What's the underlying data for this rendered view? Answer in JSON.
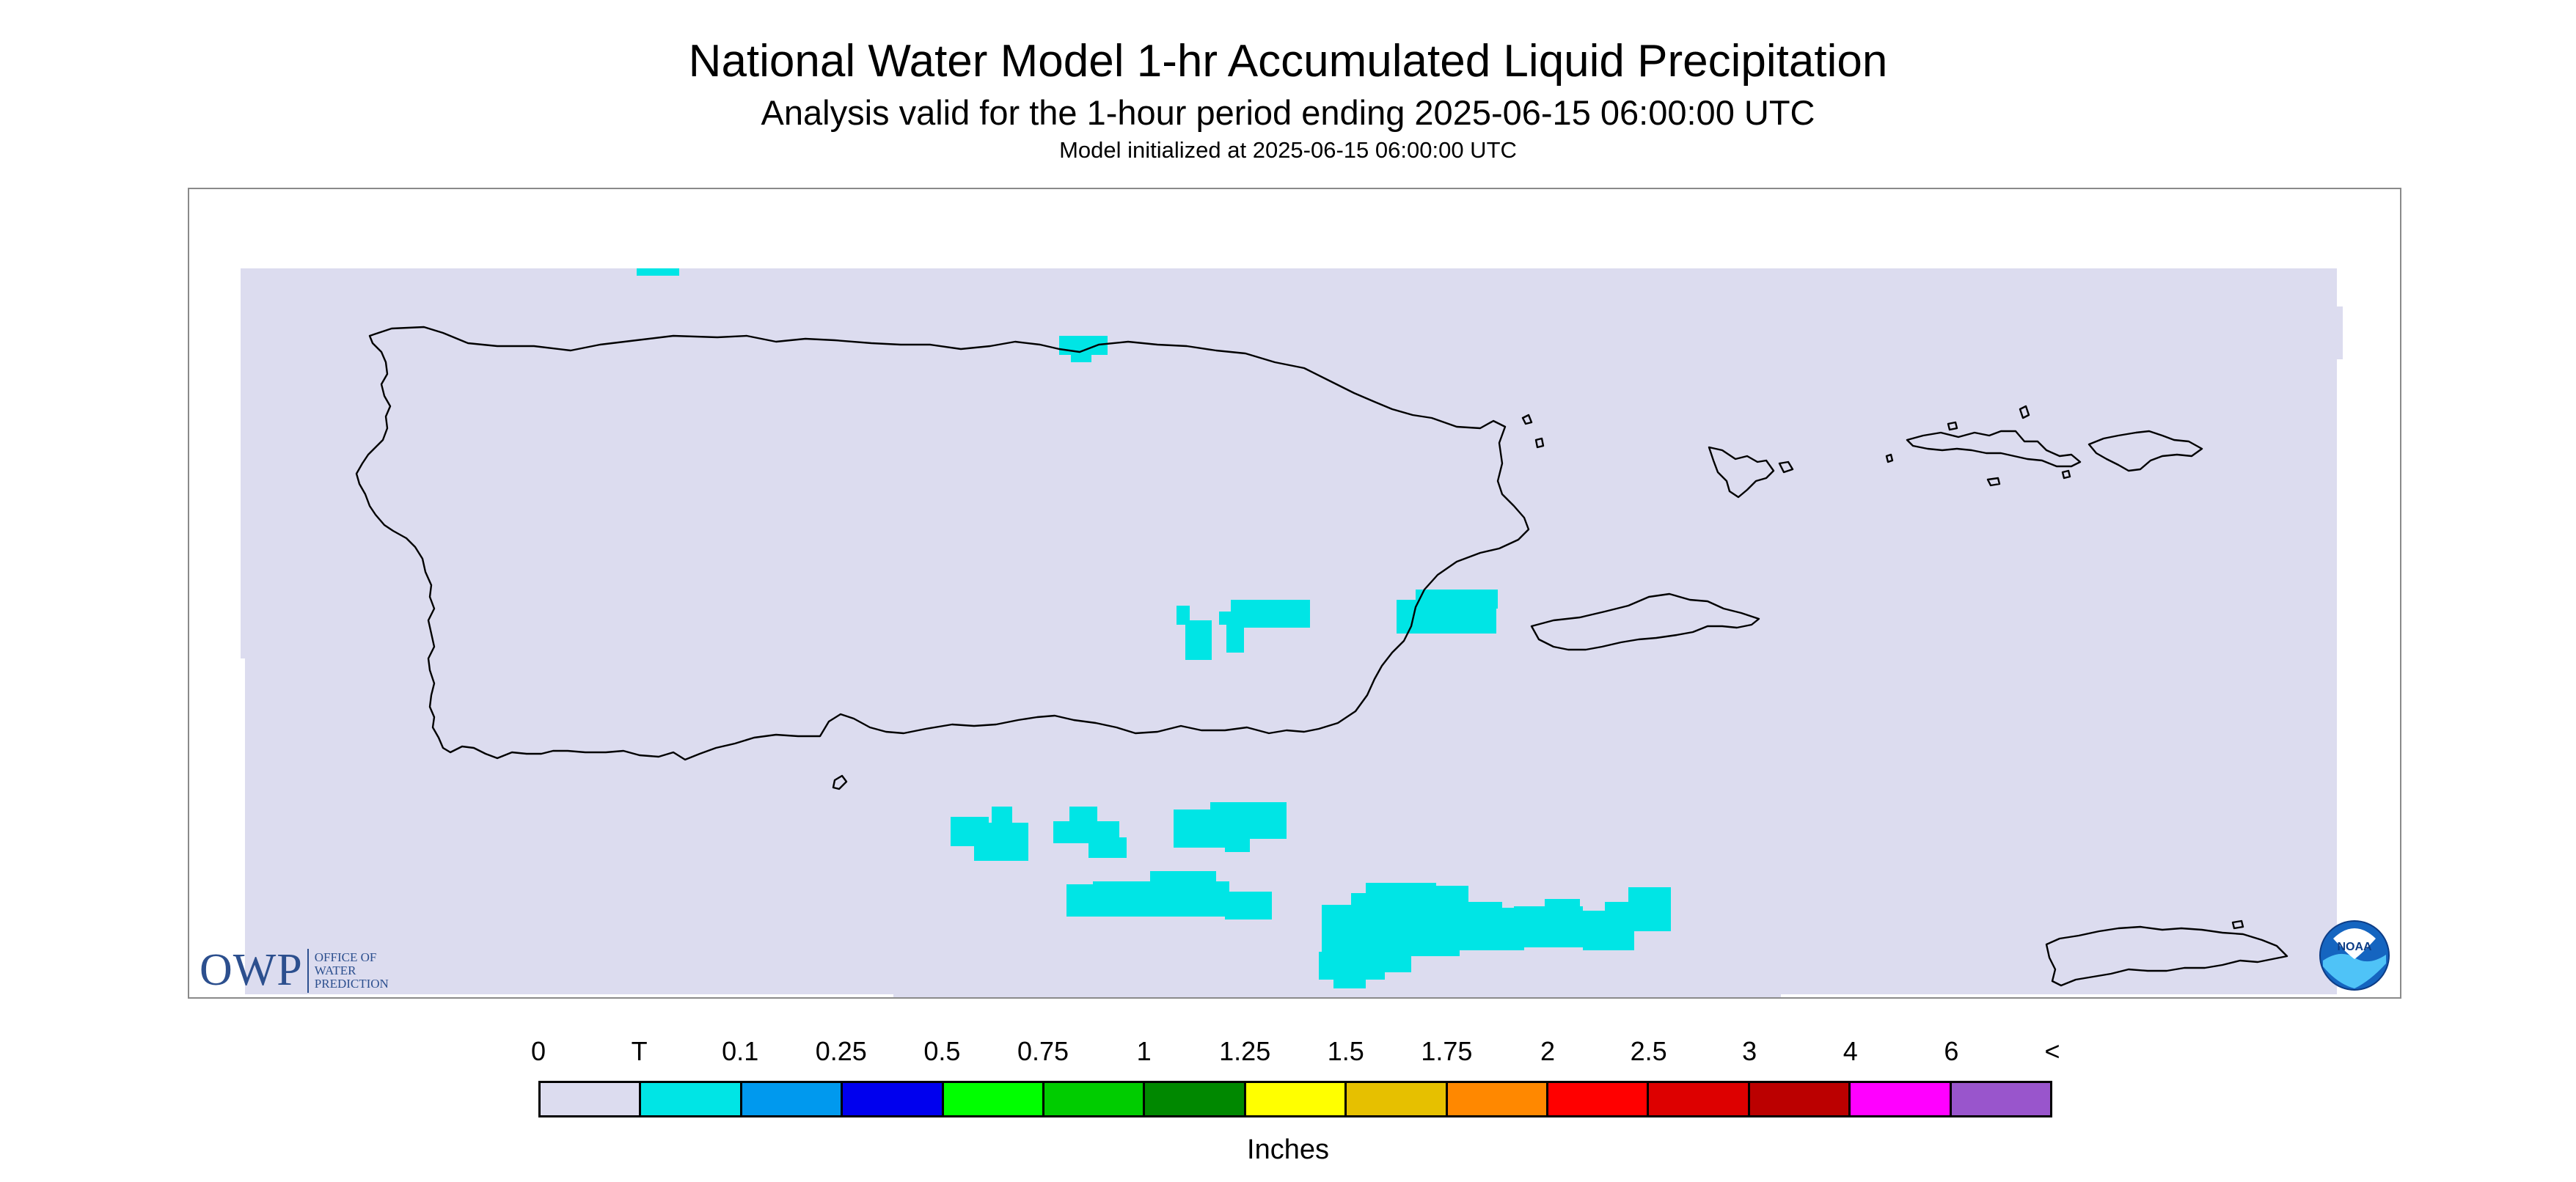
{
  "header": {
    "title": "National Water Model 1-hr Accumulated Liquid Precipitation",
    "subtitle": "Analysis valid for the 1-hour period ending 2025-06-15 06:00:00 UTC",
    "init_line": "Model initialized at 2025-06-15 06:00:00 UTC"
  },
  "map": {
    "region": "Puerto Rico and U.S. Virgin Islands",
    "background_color": "#dcdcef",
    "precip_color": "#00e5e5",
    "coastline_color": "#000000"
  },
  "logos": {
    "owp_mark": "OWP",
    "owp_text_lines": [
      "Office of",
      "Water",
      "Prediction"
    ],
    "noaa_text": "NOAA"
  },
  "legend": {
    "labels": [
      "0",
      "T",
      "0.1",
      "0.25",
      "0.5",
      "0.75",
      "1",
      "1.25",
      "1.5",
      "1.75",
      "2",
      "2.5",
      "3",
      "4",
      "6",
      "<"
    ],
    "colors": [
      "#dcdcef",
      "#00e5e5",
      "#0099ee",
      "#0000ee",
      "#00ff00",
      "#00cc00",
      "#008800",
      "#ffff00",
      "#e6c000",
      "#ff8800",
      "#ff0000",
      "#dd0000",
      "#bb0000",
      "#ff00ff",
      "#9955cc"
    ],
    "units": "Inches"
  }
}
